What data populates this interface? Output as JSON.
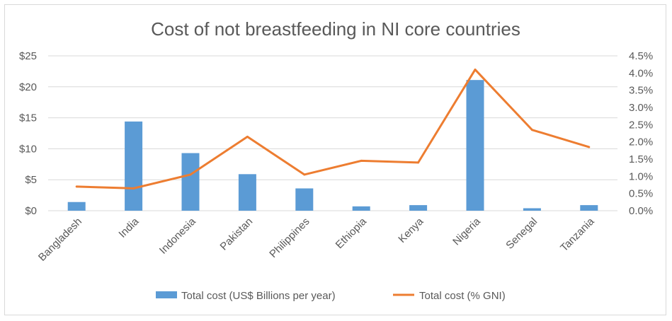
{
  "chart_data": {
    "type": "bar",
    "title": "Cost of not breastfeeding in NI core countries",
    "categories": [
      "Bangladesh",
      "India",
      "Indonesia",
      "Pakistan",
      "Philippines",
      "Ethiopia",
      "Kenya",
      "Nigeria",
      "Senegal",
      "Tanzania"
    ],
    "series": [
      {
        "name": "Total cost (US$ Billions per year)",
        "type": "bar",
        "axis": "left",
        "color": "#5b9bd5",
        "values": [
          1.4,
          14.4,
          9.3,
          5.9,
          3.6,
          0.7,
          0.9,
          21.1,
          0.4,
          0.9
        ]
      },
      {
        "name": "Total cost (% GNI)",
        "type": "line",
        "axis": "right",
        "color": "#ed7d31",
        "values": [
          0.7,
          0.65,
          1.05,
          2.15,
          1.05,
          1.45,
          1.4,
          4.1,
          2.35,
          1.85
        ]
      }
    ],
    "y_left": {
      "ylim": [
        0,
        25
      ],
      "ticks": [
        0,
        5,
        10,
        15,
        20,
        25
      ],
      "tick_labels": [
        "$0",
        "$5",
        "$10",
        "$15",
        "$20",
        "$25"
      ]
    },
    "y_right": {
      "ylim": [
        0,
        4.5
      ],
      "ticks": [
        0,
        0.5,
        1,
        1.5,
        2,
        2.5,
        3,
        3.5,
        4,
        4.5
      ],
      "tick_labels": [
        "0.0%",
        "0.5%",
        "1.0%",
        "1.5%",
        "2.0%",
        "2.5%",
        "3.0%",
        "3.5%",
        "4.0%",
        "4.5%"
      ]
    },
    "grid": true,
    "legend_position": "bottom",
    "colors": {
      "gridline": "#d9d9d9",
      "text": "#595959"
    }
  }
}
